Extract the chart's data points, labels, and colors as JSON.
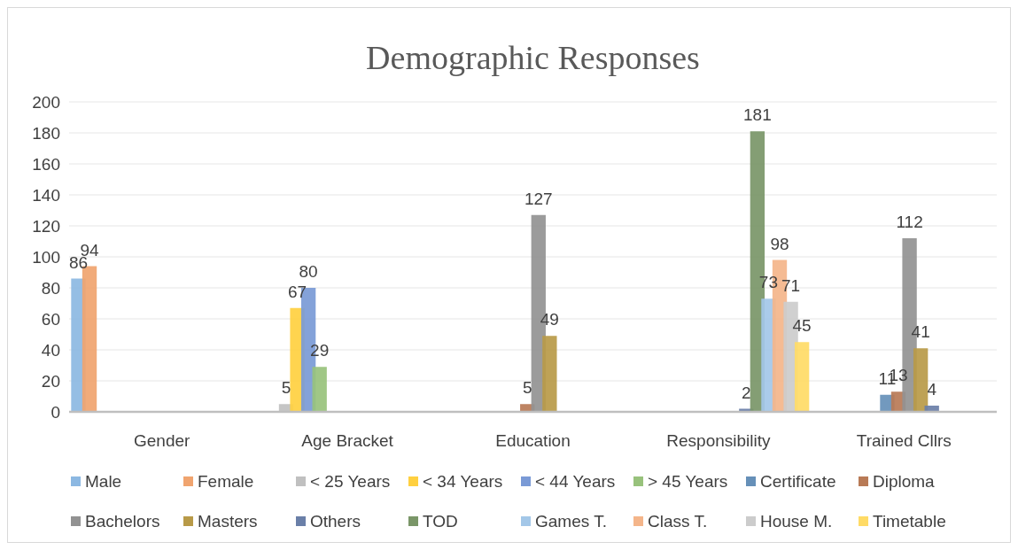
{
  "chart_data": {
    "type": "bar",
    "title": "Demographic Responses",
    "categories": [
      "Gender",
      "Age Bracket",
      "Education",
      "Responsibility",
      "Trained Cllrs"
    ],
    "series": [
      {
        "name": "Male",
        "color": "#8cb8e2",
        "values": [
          86,
          null,
          null,
          null,
          null
        ]
      },
      {
        "name": "Female",
        "color": "#f0a46f",
        "values": [
          94,
          null,
          null,
          null,
          null
        ]
      },
      {
        "name": "< 25 Years",
        "color": "#c0c0c0",
        "values": [
          null,
          5,
          null,
          null,
          null
        ]
      },
      {
        "name": "< 34 Years",
        "color": "#ffd040",
        "values": [
          null,
          67,
          null,
          null,
          null
        ]
      },
      {
        "name": "< 44 Years",
        "color": "#7a9ad6",
        "values": [
          null,
          80,
          null,
          null,
          null
        ]
      },
      {
        "name": "> 45 Years",
        "color": "#98c27c",
        "values": [
          null,
          29,
          null,
          null,
          null
        ]
      },
      {
        "name": "Certificate",
        "color": "#6690b8",
        "values": [
          null,
          null,
          null,
          null,
          11
        ]
      },
      {
        "name": "Diploma",
        "color": "#b87a56",
        "values": [
          null,
          null,
          5,
          null,
          13
        ]
      },
      {
        "name": "Bachelors",
        "color": "#929292",
        "values": [
          null,
          null,
          127,
          null,
          112
        ]
      },
      {
        "name": "Masters",
        "color": "#b89a48",
        "values": [
          null,
          null,
          49,
          null,
          41
        ]
      },
      {
        "name": "Others",
        "color": "#6a7fa8",
        "values": [
          null,
          null,
          null,
          2,
          4
        ]
      },
      {
        "name": "TOD",
        "color": "#7a9668",
        "values": [
          null,
          null,
          null,
          181,
          null
        ]
      },
      {
        "name": "Games T.",
        "color": "#a3c7e8",
        "values": [
          null,
          null,
          null,
          73,
          null
        ]
      },
      {
        "name": "Class T.",
        "color": "#f4b58a",
        "values": [
          null,
          null,
          null,
          98,
          null
        ]
      },
      {
        "name": "House M.",
        "color": "#cccccc",
        "values": [
          null,
          null,
          null,
          71,
          null
        ]
      },
      {
        "name": "Timetable",
        "color": "#ffdb66",
        "values": [
          null,
          null,
          null,
          45,
          null
        ]
      }
    ],
    "ylim": [
      0,
      200
    ],
    "yticks": [
      0,
      20,
      40,
      60,
      80,
      100,
      120,
      140,
      160,
      180,
      200
    ],
    "grid": "y",
    "legend": "bottom",
    "data_labels": true
  }
}
